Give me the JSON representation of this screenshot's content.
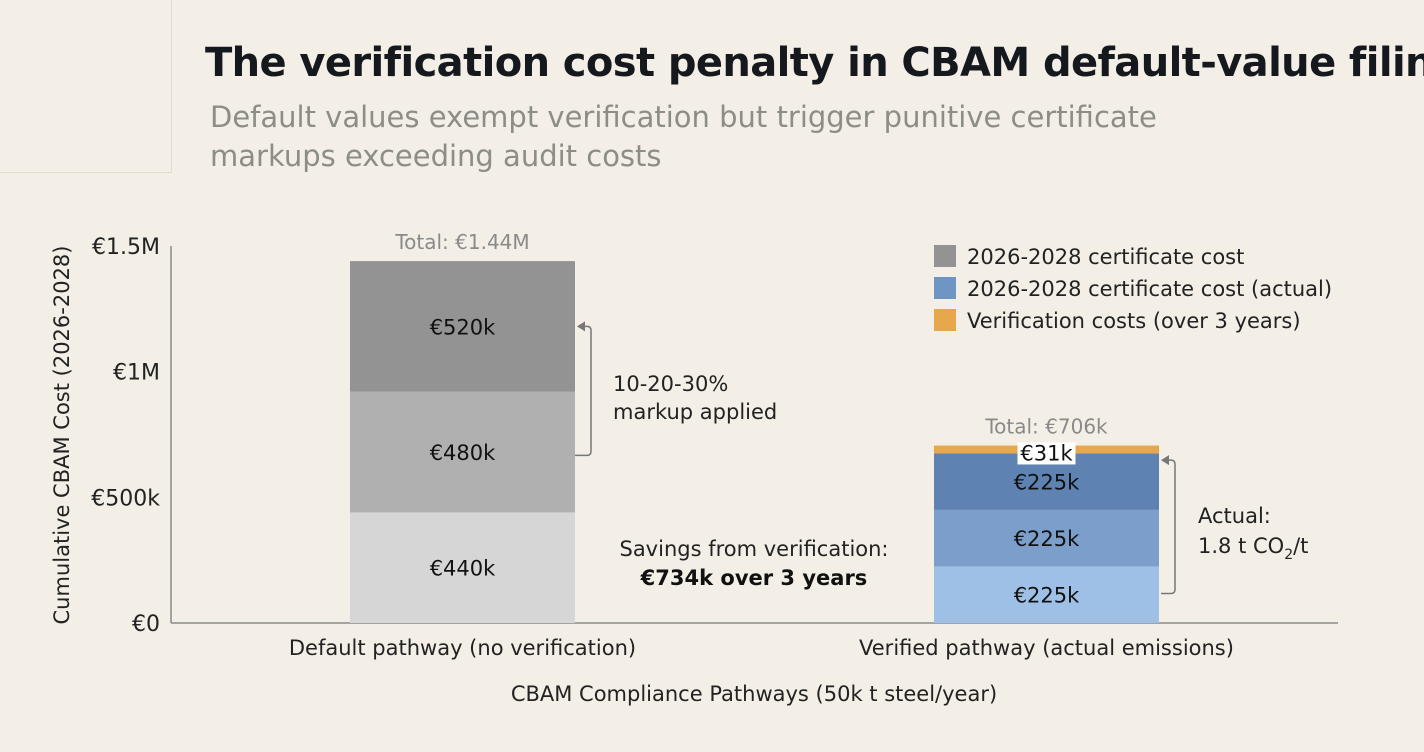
{
  "title": "The verification cost penalty in CBAM default-value filings",
  "subtitle": "Default values exempt verification but trigger punitive certificate markups exceeding audit costs",
  "chart_data": {
    "type": "bar",
    "stacked": true,
    "categories": [
      "Default pathway (no verification)",
      "Verified pathway (actual emissions)"
    ],
    "xlabel": "CBAM Compliance Pathways (50k t steel/year)",
    "ylabel": "Cumulative CBAM Cost (2026-2028)",
    "ylim": [
      0,
      1500
    ],
    "y_unit": "€k",
    "y_ticks": [
      {
        "value": 0,
        "label": "€0"
      },
      {
        "value": 500,
        "label": "€500k"
      },
      {
        "value": 1000,
        "label": "€1M"
      },
      {
        "value": 1500,
        "label": "€1.5M"
      }
    ],
    "grid": false,
    "legend_position": "top-right",
    "legend": [
      {
        "label": "2026-2028 certificate cost",
        "color": "#939393"
      },
      {
        "label": "2026-2028 certificate cost (actual)",
        "color": "#6e95c3"
      },
      {
        "label": "Verification costs (over 3 years)",
        "color": "#e6a84a"
      }
    ],
    "bars": [
      {
        "category": "Default pathway (no verification)",
        "total_label": "Total: €1.44M",
        "segments": [
          {
            "series": "2026-2028 certificate cost",
            "value": 440,
            "label": "€440k",
            "color": "#d6d6d6"
          },
          {
            "series": "2026-2028 certificate cost",
            "value": 480,
            "label": "€480k",
            "color": "#b0b0b0"
          },
          {
            "series": "2026-2028 certificate cost",
            "value": 520,
            "label": "€520k",
            "color": "#939393"
          }
        ]
      },
      {
        "category": "Verified pathway (actual emissions)",
        "total_label": "Total: €706k",
        "segments": [
          {
            "series": "2026-2028 certificate cost (actual)",
            "value": 225,
            "label": "€225k",
            "color": "#9fc0e6"
          },
          {
            "series": "2026-2028 certificate cost (actual)",
            "value": 225,
            "label": "€225k",
            "color": "#7b9ecb"
          },
          {
            "series": "2026-2028 certificate cost (actual)",
            "value": 225,
            "label": "€225k",
            "color": "#5e83b2"
          },
          {
            "series": "Verification costs (over 3 years)",
            "value": 31,
            "label": "€31k",
            "color": "#e6a84a"
          }
        ]
      }
    ],
    "annotations": {
      "markup": {
        "lines": [
          "10-20-30%",
          "markup applied"
        ]
      },
      "actual": {
        "line1": "Actual:",
        "value": "1.8 t CO",
        "subscript": "2",
        "suffix": "/t"
      },
      "savings": {
        "line1": "Savings from verification:",
        "line2": "€734k over 3 years"
      }
    }
  }
}
